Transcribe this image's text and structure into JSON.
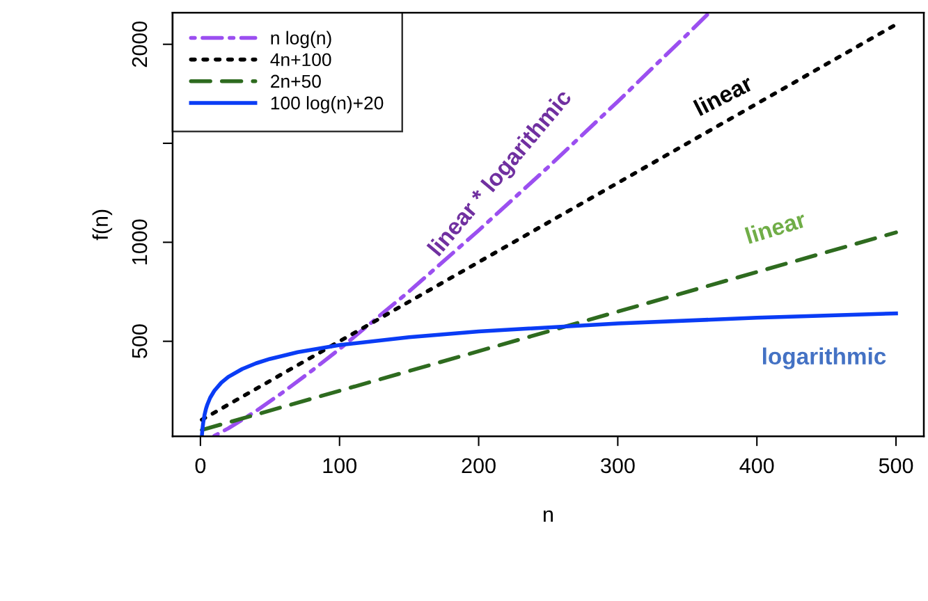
{
  "chart_data": {
    "type": "line",
    "xlabel": "n",
    "ylabel": "f(n)",
    "xlim": [
      -20,
      520
    ],
    "ylim": [
      20,
      2160
    ],
    "xticks": [
      0,
      100,
      200,
      300,
      400,
      500
    ],
    "yticks": [
      500,
      1000,
      {
        "value": 1500,
        "label": null
      },
      2000
    ],
    "grid": false,
    "legend": "top left",
    "series": [
      {
        "name": "n log(n)",
        "color": "#9b4ff0",
        "line_style": "dashdot",
        "x": [
          10,
          12,
          20,
          40,
          60,
          80,
          100,
          150,
          200,
          250,
          300,
          350,
          365
        ],
        "values": [
          23,
          30,
          60,
          148,
          246,
          351,
          461,
          752,
          1060,
          1380,
          1711,
          2050,
          2154
        ]
      },
      {
        "name": "4n+100",
        "color": "#000000",
        "line_style": "dotted",
        "x": [
          1,
          100,
          200,
          300,
          400,
          500
        ],
        "values": [
          104,
          500,
          900,
          1300,
          1700,
          2100
        ]
      },
      {
        "name": "2n+50",
        "color": "#2e6b1f",
        "line_style": "dashed",
        "x": [
          1,
          100,
          200,
          300,
          400,
          500
        ],
        "values": [
          52,
          250,
          450,
          650,
          850,
          1050
        ]
      },
      {
        "name": "100 log(n)+20",
        "color": "#0a3cf5",
        "line_style": "solid",
        "x": [
          1,
          1.5,
          2,
          3,
          4,
          5,
          7,
          10,
          15,
          20,
          30,
          40,
          50,
          70,
          100,
          150,
          200,
          300,
          400,
          500
        ],
        "values": [
          20,
          60,
          89,
          130,
          159,
          181,
          215,
          250,
          291,
          320,
          360,
          389,
          411,
          445,
          481,
          521,
          550,
          590,
          619,
          641
        ]
      }
    ],
    "annotations": [
      "linear * logarithmic",
      "linear",
      "linear",
      "logarithmic"
    ]
  }
}
